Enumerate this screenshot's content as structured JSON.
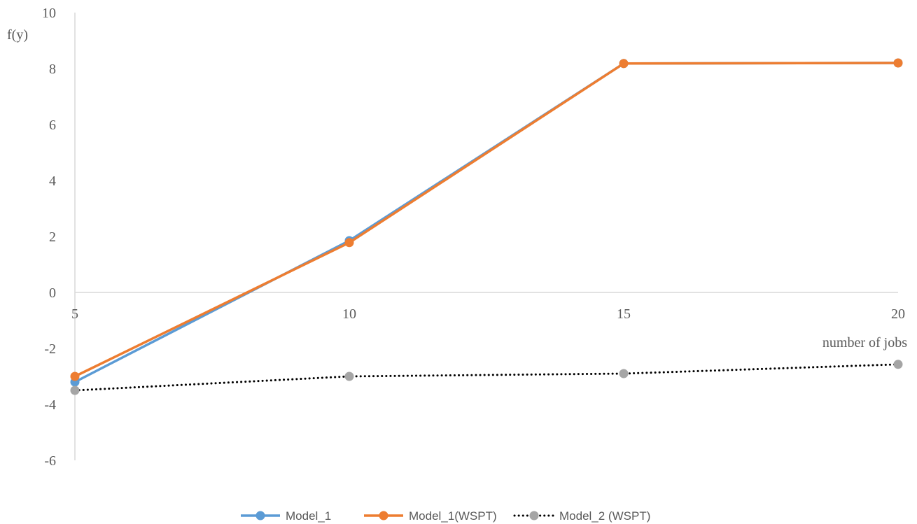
{
  "chart_data": {
    "type": "line",
    "title": "",
    "xlabel": "number of jobs",
    "ylabel": "f(y)",
    "x": [
      5,
      10,
      15,
      20
    ],
    "x_ticks": [
      "5",
      "10",
      "15",
      "20"
    ],
    "ylim": [
      -6,
      10
    ],
    "y_ticks": [
      "-6",
      "-4",
      "-2",
      "0",
      "2",
      "4",
      "6",
      "8",
      "10"
    ],
    "grid": false,
    "legend_position": "bottom",
    "series": [
      {
        "name": "Model_1",
        "values": [
          -3.2,
          1.85,
          8.18,
          8.2
        ],
        "color": "#5B9BD5",
        "line_style": "solid",
        "marker": "circle"
      },
      {
        "name": "Model_1(WSPT)",
        "values": [
          -3.0,
          1.78,
          8.18,
          8.2
        ],
        "color": "#ED7D31",
        "line_style": "solid",
        "marker": "circle"
      },
      {
        "name": "Model_2 (WSPT)",
        "values": [
          -3.5,
          -3.0,
          -2.9,
          -2.57
        ],
        "color": "#A5A5A5",
        "line_color": "#000000",
        "line_style": "dotted",
        "marker": "circle"
      }
    ]
  }
}
